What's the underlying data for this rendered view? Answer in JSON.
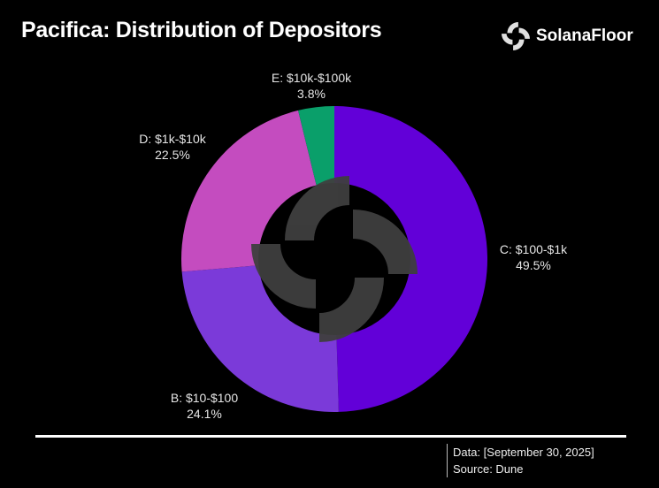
{
  "header": {
    "title": "Pacifica: Distribution of Depositors",
    "brand": "SolanaFloor",
    "logo_icon": "solanafloor-logo-icon"
  },
  "chart_data": {
    "type": "pie",
    "subtype": "donut",
    "title": "Pacifica: Distribution of Depositors",
    "categories": [
      "C: $100-$1k",
      "B: $10-$100",
      "D: $1k-$10k",
      "E: $10k-$100k"
    ],
    "values": [
      49.5,
      24.1,
      22.5,
      3.8
    ],
    "value_labels": [
      "49.5%",
      "24.1%",
      "22.5%",
      "3.8%"
    ],
    "colors": [
      "#6200d8",
      "#7b3ad9",
      "#c44cbf",
      "#0a9f6a"
    ],
    "start": "12 o'clock, clockwise"
  },
  "footer": {
    "data": "Data: [September 30, 2025]",
    "source": "Source: Dune"
  }
}
